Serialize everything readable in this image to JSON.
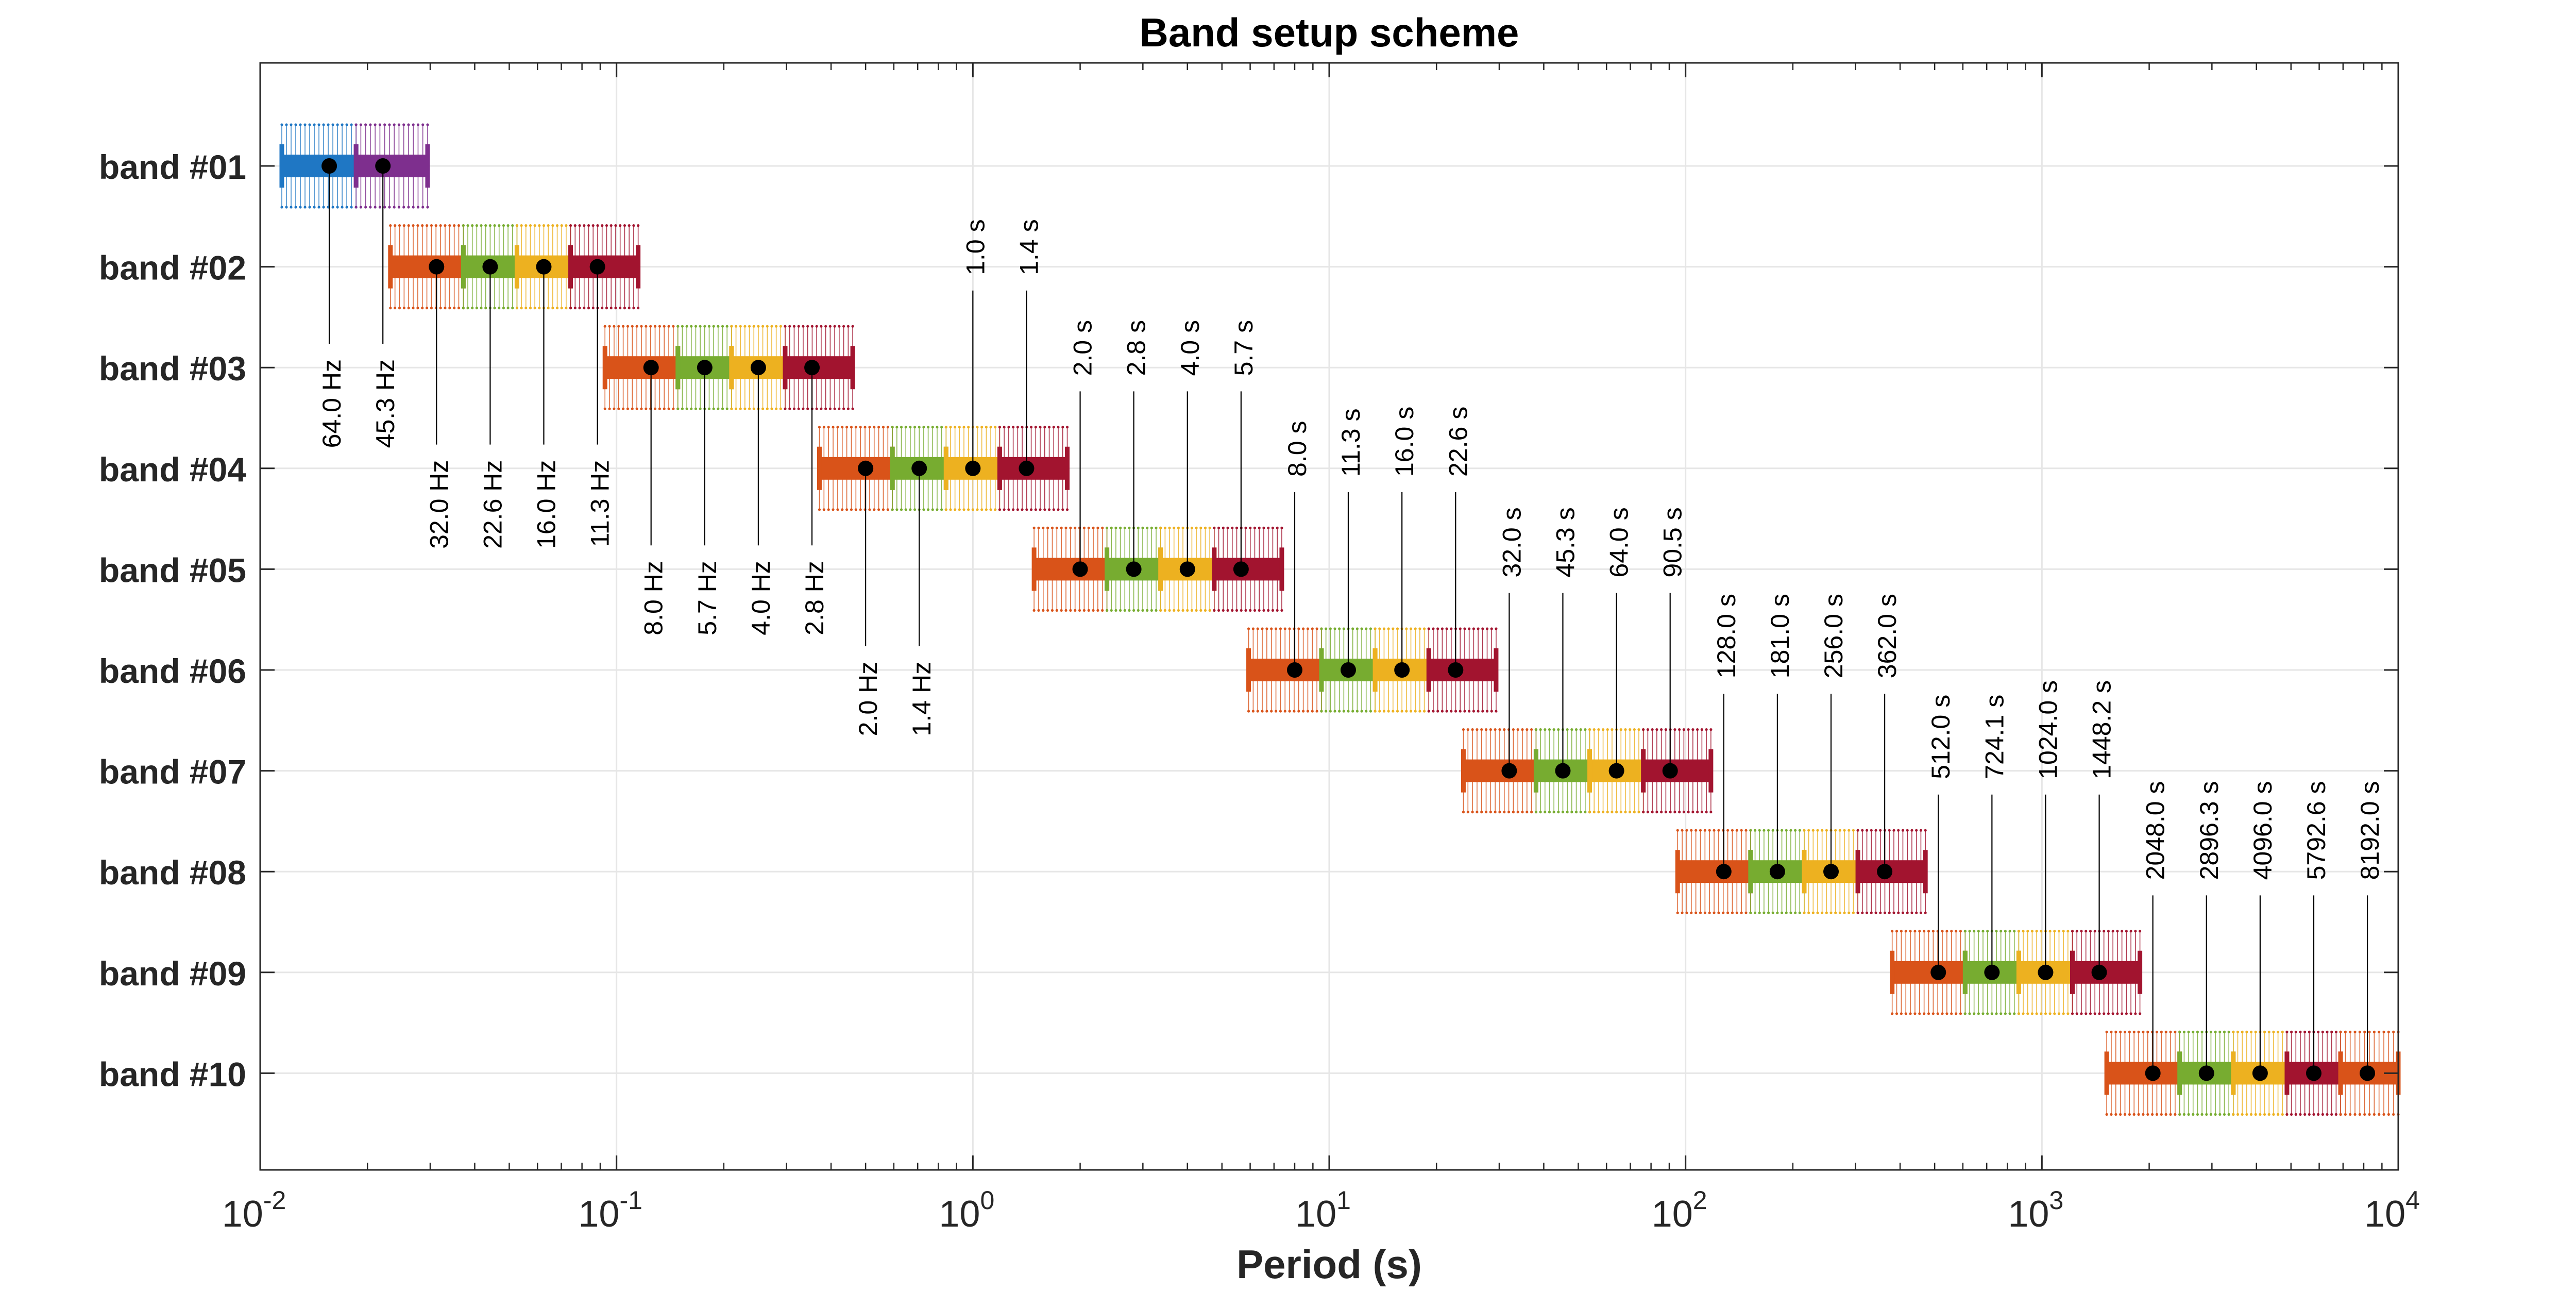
{
  "chart_data": {
    "type": "scatter",
    "title": "Band setup scheme",
    "xlabel": "Period (s)",
    "ylabel": "",
    "xscale": "log",
    "xlim": [
      0.01,
      10000
    ],
    "x_tick_labels": [
      {
        "base": "10",
        "exp": "-2",
        "value": 0.01
      },
      {
        "base": "10",
        "exp": "-1",
        "value": 0.1
      },
      {
        "base": "10",
        "exp": "0",
        "value": 1
      },
      {
        "base": "10",
        "exp": "1",
        "value": 10
      },
      {
        "base": "10",
        "exp": "2",
        "value": 100
      },
      {
        "base": "10",
        "exp": "3",
        "value": 1000
      },
      {
        "base": "10",
        "exp": "4",
        "value": 10000
      }
    ],
    "grid": true,
    "colors": {
      "blue": "#1f77c4",
      "purple": "#7e2f8e",
      "orange": "#d95319",
      "green": "#77ac30",
      "yellow": "#edb120",
      "red": "#a2142f",
      "point": "#000000",
      "grid": "#e6e6e6",
      "axis": "#262626"
    },
    "bands": [
      {
        "label": "band #01",
        "periods": [
          0.015625,
          0.0221
        ],
        "labels": [
          "64.0 Hz",
          "45.3 Hz"
        ],
        "colors": [
          "blue",
          "purple"
        ],
        "range": [
          0.0115,
          0.0295
        ]
      },
      {
        "label": "band #02",
        "periods": [
          0.03125,
          0.0442,
          0.0625,
          0.0884
        ],
        "labels": [
          "32.0 Hz",
          "22.6 Hz",
          "16.0 Hz",
          "11.3 Hz"
        ],
        "colors": [
          "orange",
          "green",
          "yellow",
          "red"
        ],
        "range": [
          0.0232,
          0.115
        ]
      },
      {
        "label": "band #03",
        "periods": [
          0.125,
          0.1768,
          0.25,
          0.3536
        ],
        "labels": [
          "8.0 Hz",
          "5.7 Hz",
          "4.0 Hz",
          "2.8 Hz"
        ],
        "colors": [
          "orange",
          "green",
          "yellow",
          "red"
        ],
        "range": [
          0.0928,
          0.46
        ]
      },
      {
        "label": "band #04",
        "periods": [
          0.5,
          0.7071,
          1.0,
          1.4142
        ],
        "labels": [
          "2.0 Hz",
          "1.4 Hz",
          "1.0 s",
          "1.4 s"
        ],
        "colors": [
          "orange",
          "green",
          "yellow",
          "red"
        ],
        "range": [
          0.371,
          1.84
        ]
      },
      {
        "label": "band #05",
        "periods": [
          2.0,
          2.828,
          4.0,
          5.657
        ],
        "labels": [
          "2.0 s",
          "2.8 s",
          "4.0 s",
          "5.7 s"
        ],
        "colors": [
          "orange",
          "green",
          "yellow",
          "red"
        ],
        "range": [
          1.485,
          7.36
        ]
      },
      {
        "label": "band #06",
        "periods": [
          8.0,
          11.31,
          16.0,
          22.63
        ],
        "labels": [
          "8.0 s",
          "11.3 s",
          "16.0 s",
          "22.6 s"
        ],
        "colors": [
          "orange",
          "green",
          "yellow",
          "red"
        ],
        "range": [
          5.94,
          29.4
        ]
      },
      {
        "label": "band #07",
        "periods": [
          32.0,
          45.25,
          64.0,
          90.51
        ],
        "labels": [
          "32.0 s",
          "45.3 s",
          "64.0 s",
          "90.5 s"
        ],
        "colors": [
          "orange",
          "green",
          "yellow",
          "red"
        ],
        "range": [
          23.8,
          117.8
        ]
      },
      {
        "label": "band #08",
        "periods": [
          128.0,
          181.0,
          256.0,
          362.0
        ],
        "labels": [
          "128.0 s",
          "181.0 s",
          "256.0 s",
          "362.0 s"
        ],
        "colors": [
          "orange",
          "green",
          "yellow",
          "red"
        ],
        "range": [
          95.0,
          471
        ]
      },
      {
        "label": "band #09",
        "periods": [
          512.0,
          724.1,
          1024.0,
          1448.2
        ],
        "labels": [
          "512.0 s",
          "724.1 s",
          "1024.0 s",
          "1448.2 s"
        ],
        "colors": [
          "orange",
          "green",
          "yellow",
          "red"
        ],
        "range": [
          380,
          1884
        ]
      },
      {
        "label": "band #10",
        "periods": [
          2048.0,
          2896.3,
          4096.0,
          5792.6,
          8192.0
        ],
        "labels": [
          "2048.0 s",
          "2896.3 s",
          "4096.0 s",
          "5792.6 s",
          "8192.0 s"
        ],
        "colors": [
          "orange",
          "green",
          "yellow",
          "red",
          "orange"
        ],
        "range": [
          1520,
          10000
        ]
      }
    ]
  }
}
